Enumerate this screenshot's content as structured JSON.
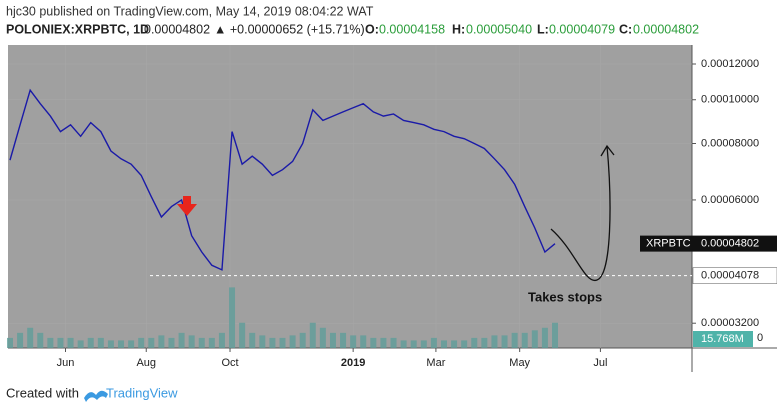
{
  "header": {
    "publisher": "hjc30 published on TradingView.com, May 14, 2019 08:04:22 WAT",
    "symbol": "POLONIEX:XRPBTC, 1D",
    "last": "0.00004802",
    "change": "▲ +0.00000652 (+15.71%)",
    "o_label": "O:",
    "o": "0.00004158",
    "h_label": "H:",
    "h": "0.00005040",
    "l_label": "L:",
    "l": "0.00004079",
    "c_label": "C:",
    "c": "0.00004802"
  },
  "chart_data": {
    "type": "line",
    "log_scale": true,
    "color": "#1a1aa8",
    "categories": [
      null,
      null,
      null,
      null,
      null,
      null,
      null,
      null,
      null,
      null,
      null,
      null,
      null,
      null,
      null,
      null,
      null,
      null,
      null,
      null,
      null,
      null,
      null,
      null,
      null,
      null,
      null,
      null,
      null,
      null,
      null,
      null,
      null,
      null,
      null,
      null,
      null,
      null,
      null,
      null,
      null,
      null,
      null,
      null,
      null,
      null,
      null,
      null,
      null,
      null,
      null,
      null,
      null,
      null,
      null
    ],
    "series": [
      {
        "name": "XRPBTC",
        "color": "#1a1aa8",
        "values": [
          7.35e-05,
          8.8e-05,
          0.000105,
          9.8e-05,
          9.2e-05,
          8.5e-05,
          8.8e-05,
          8.3e-05,
          8.9e-05,
          8.5e-05,
          7.7e-05,
          7.4e-05,
          7.2e-05,
          6.8e-05,
          6.1e-05,
          5.5e-05,
          5.8e-05,
          6e-05,
          5e-05,
          4.6e-05,
          4.3e-05,
          4.2e-05,
          8.5e-05,
          7.2e-05,
          7.5e-05,
          7.2e-05,
          6.8e-05,
          7e-05,
          7.3e-05,
          8e-05,
          9.5e-05,
          9e-05,
          9.2e-05,
          9.4e-05,
          9.6e-05,
          9.8e-05,
          9.4e-05,
          9.2e-05,
          9.3e-05,
          9e-05,
          8.9e-05,
          8.8e-05,
          8.6e-05,
          8.5e-05,
          8.3e-05,
          8.2e-05,
          8e-05,
          7.8e-05,
          7.4e-05,
          7e-05,
          6.5e-05,
          5.8e-05,
          5.2e-05,
          4.6e-05,
          4.8e-05
        ]
      },
      {
        "name": "Volume",
        "axis": "y2",
        "color": "#5f9e9a",
        "values": [
          2,
          3,
          4,
          3,
          2,
          2,
          2,
          1.5,
          2,
          2,
          1.5,
          1.5,
          1.5,
          2,
          2,
          2.5,
          2,
          3,
          2.5,
          2,
          2,
          3,
          12,
          5,
          3,
          2.5,
          2,
          2,
          2.5,
          3,
          5,
          4,
          3,
          3,
          2.5,
          2.5,
          2,
          2,
          2,
          1.5,
          1.5,
          1.5,
          2,
          1.5,
          1.5,
          1.5,
          2,
          2,
          2.5,
          2.5,
          3,
          3,
          3.5,
          4,
          5
        ]
      }
    ],
    "ylim": [
      2.82e-05,
      0.0001322
    ],
    "yticks": [
      {
        "value": 0.00012,
        "label": "0.00012000"
      },
      {
        "value": 0.0001,
        "label": "0.00010000"
      },
      {
        "value": 8e-05,
        "label": "0.00008000"
      },
      {
        "value": 6e-05,
        "label": "0.00006000"
      },
      {
        "value": 3.2e-05,
        "label": "0.00003200"
      }
    ],
    "y2lim": [
      0,
      60
    ],
    "y2ticks": [
      0
    ],
    "xticks": [
      {
        "value": 5.5,
        "label": "Jun"
      },
      {
        "value": 13.5,
        "label": "Aug"
      },
      {
        "value": 21.8,
        "label": "Oct"
      },
      {
        "value": 34,
        "label": "2019"
      },
      {
        "value": 42.2,
        "label": "Mar"
      },
      {
        "value": 50.5,
        "label": "May"
      },
      {
        "value": 58.5,
        "label": "Jul"
      }
    ],
    "price_tag": {
      "name": "XRPBTC",
      "value": 4.802e-05,
      "label": "0.00004802"
    },
    "level": {
      "value": 4.078e-05,
      "label": "0.00004078"
    },
    "volume_label": "15.768M",
    "annotation": "Takes stops"
  },
  "footer": {
    "created": "Created with",
    "brand": "TradingView"
  }
}
